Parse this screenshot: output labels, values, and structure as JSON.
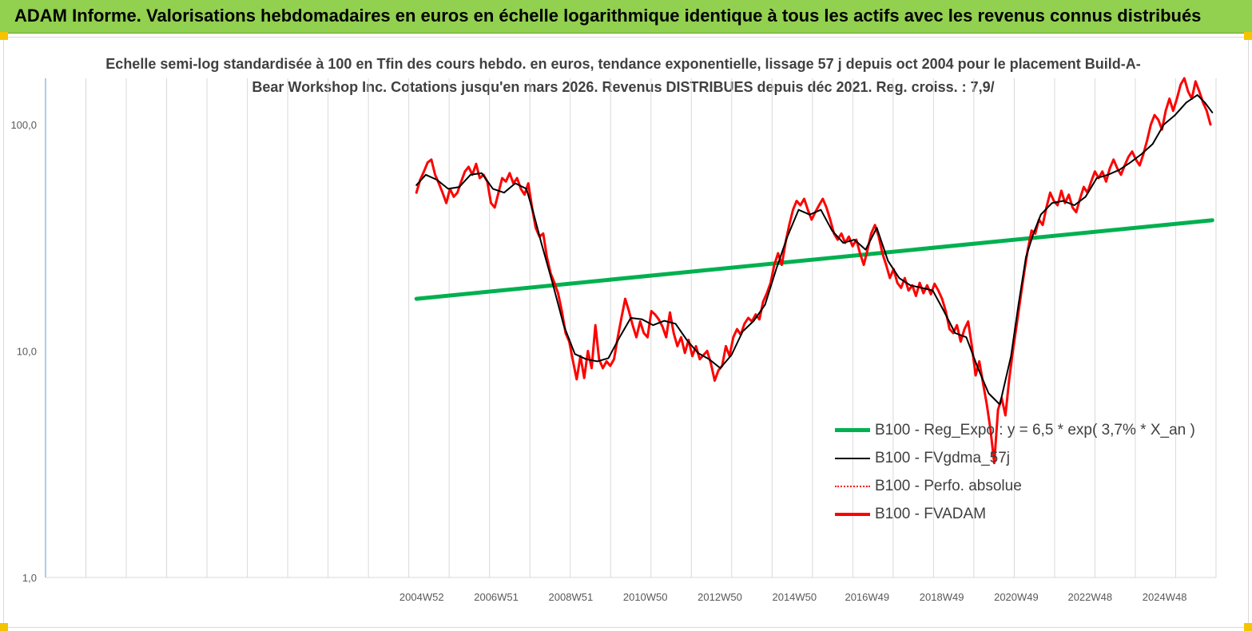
{
  "banner": {
    "title": "ADAM Informe. Valorisations hebdomadaires en euros en échelle logarithmique identique à tous les actifs avec les revenus connus distribués"
  },
  "chart_data": {
    "type": "line",
    "title": "Echelle semi-log standardisée à 100 en Tfin des cours hebdo. en euros, tendance exponentielle, lissage 57 j depuis oct 2004 pour le placement Build-A-Bear Workshop Inc.  Cotations jusqu'en mars 2026. Revenus DISTRIBUES depuis déc 2021. Reg. croiss. : 7,9/",
    "y_scale": "log",
    "ylim": [
      1,
      160
    ],
    "y_ticks": [
      1,
      10,
      100
    ],
    "y_tick_labels": [
      "1,0",
      "10,0",
      "100,0"
    ],
    "xlim": [
      1994.9,
      2026.3
    ],
    "x_ticks": [
      2004.99,
      2006.99,
      2008.99,
      2010.99,
      2012.99,
      2014.99,
      2016.94,
      2018.94,
      2020.94,
      2022.92,
      2024.92
    ],
    "x_tick_labels": [
      "2004W52",
      "2006W51",
      "2008W51",
      "2010W50",
      "2012W50",
      "2014W50",
      "2016W49",
      "2018W49",
      "2020W49",
      "2022W48",
      "2024W48"
    ],
    "grid": "vertical",
    "legend_position": "bottom-right",
    "series": [
      {
        "name": "B100 - Reg_Expo : y = 6,5 * exp( 3,7% *  X_an )",
        "color": "#00b050",
        "style": "solid",
        "width": 5,
        "points": [
          [
            2004.85,
            17.0
          ],
          [
            2026.2,
            37.8
          ]
        ]
      },
      {
        "name": "B100 - FVgdma_57j",
        "color": "#000000",
        "style": "solid",
        "width": 2,
        "points": [
          [
            2004.85,
            54
          ],
          [
            2005.1,
            60
          ],
          [
            2005.4,
            57
          ],
          [
            2005.7,
            52
          ],
          [
            2006.0,
            53
          ],
          [
            2006.3,
            60
          ],
          [
            2006.6,
            61
          ],
          [
            2006.9,
            52
          ],
          [
            2007.2,
            50
          ],
          [
            2007.5,
            55
          ],
          [
            2007.8,
            52
          ],
          [
            2008.0,
            40
          ],
          [
            2008.2,
            30
          ],
          [
            2008.5,
            20
          ],
          [
            2008.8,
            13
          ],
          [
            2009.1,
            9.7
          ],
          [
            2009.4,
            9.2
          ],
          [
            2009.7,
            9.0
          ],
          [
            2010.0,
            9.3
          ],
          [
            2010.3,
            11.5
          ],
          [
            2010.6,
            14.0
          ],
          [
            2010.9,
            13.8
          ],
          [
            2011.2,
            13.0
          ],
          [
            2011.5,
            13.6
          ],
          [
            2011.8,
            13.2
          ],
          [
            2012.1,
            11.2
          ],
          [
            2012.4,
            9.8
          ],
          [
            2012.7,
            9.2
          ],
          [
            2013.0,
            8.4
          ],
          [
            2013.3,
            9.6
          ],
          [
            2013.6,
            12.2
          ],
          [
            2013.9,
            13.6
          ],
          [
            2014.2,
            16.0
          ],
          [
            2014.5,
            23.0
          ],
          [
            2014.8,
            32.0
          ],
          [
            2015.1,
            42.0
          ],
          [
            2015.4,
            40.0
          ],
          [
            2015.7,
            42.0
          ],
          [
            2016.0,
            34.0
          ],
          [
            2016.3,
            30.0
          ],
          [
            2016.6,
            31.0
          ],
          [
            2016.9,
            28.0
          ],
          [
            2017.2,
            35.0
          ],
          [
            2017.5,
            25.0
          ],
          [
            2017.8,
            21.0
          ],
          [
            2018.1,
            19.5
          ],
          [
            2018.4,
            19.0
          ],
          [
            2018.7,
            18.5
          ],
          [
            2019.0,
            15.0
          ],
          [
            2019.3,
            12.0
          ],
          [
            2019.6,
            11.5
          ],
          [
            2019.9,
            8.5
          ],
          [
            2020.2,
            6.5
          ],
          [
            2020.5,
            5.8
          ],
          [
            2020.8,
            9.5
          ],
          [
            2021.0,
            16.0
          ],
          [
            2021.2,
            26.0
          ],
          [
            2021.4,
            33.0
          ],
          [
            2021.6,
            40.0
          ],
          [
            2021.9,
            45.0
          ],
          [
            2022.2,
            46.0
          ],
          [
            2022.5,
            44.0
          ],
          [
            2022.8,
            48.0
          ],
          [
            2023.1,
            58.0
          ],
          [
            2023.4,
            60.0
          ],
          [
            2023.7,
            63.0
          ],
          [
            2024.0,
            68.0
          ],
          [
            2024.3,
            74.0
          ],
          [
            2024.6,
            82.0
          ],
          [
            2024.9,
            100.0
          ],
          [
            2025.2,
            110.0
          ],
          [
            2025.5,
            125.0
          ],
          [
            2025.8,
            135.0
          ],
          [
            2026.0,
            125.0
          ],
          [
            2026.2,
            113.0
          ]
        ]
      },
      {
        "name": "B100 - Perfo. absolue",
        "color": "#ff0000",
        "style": "dotted",
        "width": 2,
        "points": []
      },
      {
        "name": "B100 - FVADAM",
        "color": "#ff0000",
        "style": "solid",
        "width": 3,
        "points": [
          [
            2004.85,
            50
          ],
          [
            2004.95,
            57
          ],
          [
            2005.05,
            62
          ],
          [
            2005.15,
            68
          ],
          [
            2005.25,
            70
          ],
          [
            2005.35,
            60
          ],
          [
            2005.45,
            55
          ],
          [
            2005.55,
            50
          ],
          [
            2005.65,
            45
          ],
          [
            2005.75,
            52
          ],
          [
            2005.85,
            48
          ],
          [
            2005.95,
            50
          ],
          [
            2006.05,
            56
          ],
          [
            2006.15,
            62
          ],
          [
            2006.25,
            65
          ],
          [
            2006.35,
            60
          ],
          [
            2006.45,
            67
          ],
          [
            2006.55,
            58
          ],
          [
            2006.65,
            60
          ],
          [
            2006.75,
            56
          ],
          [
            2006.85,
            45
          ],
          [
            2006.95,
            43
          ],
          [
            2007.05,
            50
          ],
          [
            2007.15,
            58
          ],
          [
            2007.25,
            56
          ],
          [
            2007.35,
            61
          ],
          [
            2007.45,
            55
          ],
          [
            2007.55,
            58
          ],
          [
            2007.65,
            52
          ],
          [
            2007.75,
            49
          ],
          [
            2007.85,
            55
          ],
          [
            2007.95,
            43
          ],
          [
            2008.05,
            35
          ],
          [
            2008.15,
            32
          ],
          [
            2008.25,
            33
          ],
          [
            2008.35,
            26
          ],
          [
            2008.45,
            22
          ],
          [
            2008.55,
            20
          ],
          [
            2008.65,
            18
          ],
          [
            2008.75,
            15
          ],
          [
            2008.85,
            12
          ],
          [
            2008.95,
            11
          ],
          [
            2009.05,
            9
          ],
          [
            2009.15,
            7.5
          ],
          [
            2009.25,
            9.5
          ],
          [
            2009.35,
            7.6
          ],
          [
            2009.45,
            10
          ],
          [
            2009.55,
            8.4
          ],
          [
            2009.65,
            13
          ],
          [
            2009.75,
            9.2
          ],
          [
            2009.85,
            8.4
          ],
          [
            2009.95,
            9
          ],
          [
            2010.05,
            8.6
          ],
          [
            2010.15,
            9.2
          ],
          [
            2010.25,
            11.5
          ],
          [
            2010.35,
            14
          ],
          [
            2010.45,
            17
          ],
          [
            2010.55,
            15
          ],
          [
            2010.65,
            13
          ],
          [
            2010.75,
            11.5
          ],
          [
            2010.85,
            13.5
          ],
          [
            2010.95,
            12
          ],
          [
            2011.05,
            11.5
          ],
          [
            2011.15,
            15
          ],
          [
            2011.25,
            14.5
          ],
          [
            2011.35,
            13.8
          ],
          [
            2011.45,
            12.8
          ],
          [
            2011.55,
            11.5
          ],
          [
            2011.65,
            14.8
          ],
          [
            2011.75,
            12
          ],
          [
            2011.85,
            10.5
          ],
          [
            2011.95,
            11.5
          ],
          [
            2012.05,
            9.8
          ],
          [
            2012.15,
            11.2
          ],
          [
            2012.25,
            9.5
          ],
          [
            2012.35,
            10.5
          ],
          [
            2012.45,
            9.2
          ],
          [
            2012.55,
            9.6
          ],
          [
            2012.65,
            10
          ],
          [
            2012.75,
            8.8
          ],
          [
            2012.85,
            7.4
          ],
          [
            2012.95,
            8.2
          ],
          [
            2013.05,
            8.6
          ],
          [
            2013.15,
            10.5
          ],
          [
            2013.25,
            9.5
          ],
          [
            2013.35,
            11.5
          ],
          [
            2013.45,
            12.5
          ],
          [
            2013.55,
            11.8
          ],
          [
            2013.65,
            13.2
          ],
          [
            2013.75,
            14
          ],
          [
            2013.85,
            13.5
          ],
          [
            2013.95,
            14.5
          ],
          [
            2014.05,
            13.8
          ],
          [
            2014.15,
            16.5
          ],
          [
            2014.25,
            18
          ],
          [
            2014.35,
            20
          ],
          [
            2014.45,
            24
          ],
          [
            2014.55,
            27
          ],
          [
            2014.65,
            24
          ],
          [
            2014.75,
            30
          ],
          [
            2014.85,
            36
          ],
          [
            2014.95,
            42
          ],
          [
            2015.05,
            46
          ],
          [
            2015.15,
            44
          ],
          [
            2015.25,
            47
          ],
          [
            2015.35,
            42
          ],
          [
            2015.45,
            38
          ],
          [
            2015.55,
            41
          ],
          [
            2015.65,
            44
          ],
          [
            2015.75,
            47
          ],
          [
            2015.85,
            43
          ],
          [
            2015.95,
            38
          ],
          [
            2016.05,
            33
          ],
          [
            2016.15,
            31
          ],
          [
            2016.25,
            33
          ],
          [
            2016.35,
            30
          ],
          [
            2016.45,
            32
          ],
          [
            2016.55,
            29
          ],
          [
            2016.65,
            31
          ],
          [
            2016.75,
            27
          ],
          [
            2016.85,
            24
          ],
          [
            2016.95,
            28
          ],
          [
            2017.05,
            33
          ],
          [
            2017.15,
            36
          ],
          [
            2017.25,
            32
          ],
          [
            2017.35,
            27
          ],
          [
            2017.45,
            24
          ],
          [
            2017.55,
            21
          ],
          [
            2017.65,
            23
          ],
          [
            2017.75,
            20
          ],
          [
            2017.85,
            19
          ],
          [
            2017.95,
            21
          ],
          [
            2018.05,
            18.5
          ],
          [
            2018.15,
            19.5
          ],
          [
            2018.25,
            17.5
          ],
          [
            2018.35,
            20
          ],
          [
            2018.45,
            18
          ],
          [
            2018.55,
            19.5
          ],
          [
            2018.65,
            17.8
          ],
          [
            2018.75,
            19.8
          ],
          [
            2018.85,
            18.5
          ],
          [
            2018.95,
            17
          ],
          [
            2019.05,
            15
          ],
          [
            2019.15,
            12.5
          ],
          [
            2019.25,
            12
          ],
          [
            2019.35,
            13
          ],
          [
            2019.45,
            11
          ],
          [
            2019.55,
            12.5
          ],
          [
            2019.65,
            13.5
          ],
          [
            2019.75,
            10.5
          ],
          [
            2019.85,
            7.8
          ],
          [
            2019.95,
            9
          ],
          [
            2020.05,
            7.2
          ],
          [
            2020.15,
            5.8
          ],
          [
            2020.25,
            4.5
          ],
          [
            2020.35,
            3.2
          ],
          [
            2020.45,
            5.5
          ],
          [
            2020.55,
            6.2
          ],
          [
            2020.65,
            5.2
          ],
          [
            2020.75,
            7.5
          ],
          [
            2020.85,
            10
          ],
          [
            2020.95,
            13
          ],
          [
            2021.05,
            17
          ],
          [
            2021.15,
            22
          ],
          [
            2021.25,
            28
          ],
          [
            2021.35,
            34
          ],
          [
            2021.45,
            33
          ],
          [
            2021.55,
            38
          ],
          [
            2021.65,
            36
          ],
          [
            2021.75,
            43
          ],
          [
            2021.85,
            50
          ],
          [
            2021.95,
            46
          ],
          [
            2022.05,
            44
          ],
          [
            2022.15,
            51
          ],
          [
            2022.25,
            45
          ],
          [
            2022.35,
            49
          ],
          [
            2022.45,
            43
          ],
          [
            2022.55,
            41
          ],
          [
            2022.65,
            47
          ],
          [
            2022.75,
            53
          ],
          [
            2022.85,
            50
          ],
          [
            2022.95,
            56
          ],
          [
            2023.05,
            62
          ],
          [
            2023.15,
            58
          ],
          [
            2023.25,
            62
          ],
          [
            2023.35,
            56
          ],
          [
            2023.45,
            64
          ],
          [
            2023.55,
            70
          ],
          [
            2023.65,
            64
          ],
          [
            2023.75,
            60
          ],
          [
            2023.85,
            66
          ],
          [
            2023.95,
            72
          ],
          [
            2024.05,
            76
          ],
          [
            2024.15,
            70
          ],
          [
            2024.25,
            66
          ],
          [
            2024.35,
            74
          ],
          [
            2024.45,
            85
          ],
          [
            2024.55,
            100
          ],
          [
            2024.65,
            110
          ],
          [
            2024.75,
            105
          ],
          [
            2024.85,
            95
          ],
          [
            2024.95,
            115
          ],
          [
            2025.05,
            130
          ],
          [
            2025.15,
            115
          ],
          [
            2025.25,
            130
          ],
          [
            2025.35,
            150
          ],
          [
            2025.45,
            160
          ],
          [
            2025.55,
            140
          ],
          [
            2025.65,
            130
          ],
          [
            2025.75,
            155
          ],
          [
            2025.85,
            140
          ],
          [
            2025.95,
            125
          ],
          [
            2026.05,
            115
          ],
          [
            2026.15,
            100
          ]
        ]
      }
    ]
  }
}
